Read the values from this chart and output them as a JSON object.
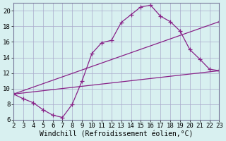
{
  "xlabel": "Windchill (Refroidissement éolien,°C)",
  "bg_color": "#d8f0f0",
  "grid_color": "#aaaacc",
  "line_color": "#882288",
  "xlim": [
    2,
    23
  ],
  "ylim": [
    6,
    21
  ],
  "xticks": [
    2,
    3,
    4,
    5,
    6,
    7,
    8,
    9,
    10,
    11,
    12,
    13,
    14,
    15,
    16,
    17,
    18,
    19,
    20,
    21,
    22,
    23
  ],
  "yticks": [
    6,
    8,
    10,
    12,
    14,
    16,
    18,
    20
  ],
  "line1_x": [
    2,
    3,
    4,
    5,
    6,
    7,
    8,
    9,
    10,
    11,
    12,
    13,
    14,
    15,
    16,
    17,
    18,
    19,
    20,
    21,
    22,
    23
  ],
  "line1_y": [
    9.3,
    8.7,
    8.2,
    7.3,
    6.6,
    6.3,
    8.0,
    11.0,
    14.5,
    15.9,
    16.2,
    18.5,
    19.5,
    20.5,
    20.7,
    19.3,
    18.6,
    17.4,
    15.0,
    13.8,
    12.5,
    12.3
  ],
  "line2_x": [
    2,
    23
  ],
  "line2_y": [
    9.3,
    12.3
  ],
  "line3_x": [
    2,
    23
  ],
  "line3_y": [
    9.3,
    18.6
  ],
  "tickfont_size": 6.5,
  "labelfont_size": 7
}
